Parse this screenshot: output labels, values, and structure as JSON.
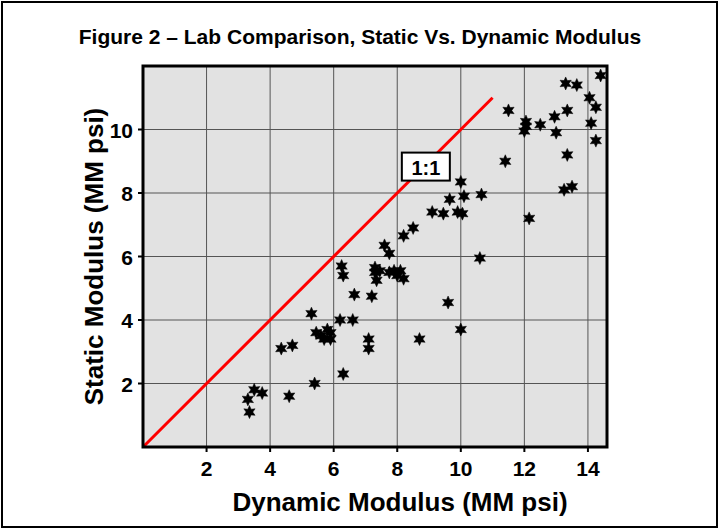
{
  "chart_data": {
    "type": "scatter",
    "title": "Figure 2 – Lab Comparison, Static Vs. Dynamic Modulus",
    "x_label": "Dynamic Modulus (MM psi)",
    "y_label": "Static Modulus (MM psi)",
    "xlim": [
      0,
      14.6
    ],
    "ylim": [
      0,
      12
    ],
    "xticks": [
      2,
      4,
      6,
      8,
      10,
      12,
      14
    ],
    "yticks": [
      2,
      4,
      6,
      8,
      10
    ],
    "grid": true,
    "series": [
      {
        "type": "scatter",
        "color": "#000000",
        "marker": "star",
        "x": [
          3.3,
          3.35,
          3.5,
          3.75,
          4.35,
          4.7,
          4.6,
          5.3,
          5.4,
          5.45,
          5.6,
          5.7,
          5.8,
          5.9,
          5.9,
          6.2,
          6.25,
          6.3,
          6.3,
          6.6,
          6.65,
          7.1,
          7.1,
          7.2,
          7.3,
          7.3,
          7.35,
          7.45,
          7.6,
          7.75,
          7.75,
          7.9,
          8.0,
          8.1,
          8.2,
          8.2,
          8.5,
          8.7,
          9.1,
          9.45,
          9.6,
          9.65,
          9.9,
          10.0,
          10.05,
          10.1,
          10.0,
          10.65,
          10.6,
          11.4,
          11.5,
          12.0,
          12.05,
          12.05,
          12.15,
          12.5,
          12.95,
          13.0,
          13.25,
          13.3,
          13.35,
          13.35,
          13.5,
          13.65,
          14.05,
          14.1,
          14.25,
          14.25,
          14.4
        ],
        "values": [
          1.5,
          1.1,
          1.8,
          1.7,
          3.1,
          3.2,
          1.6,
          4.2,
          2.0,
          3.6,
          3.5,
          3.4,
          3.7,
          3.4,
          3.6,
          4.0,
          5.7,
          5.4,
          2.3,
          4.0,
          4.8,
          3.4,
          3.1,
          4.75,
          5.5,
          5.65,
          5.25,
          5.55,
          6.35,
          6.1,
          5.5,
          5.55,
          5.4,
          5.55,
          5.3,
          6.65,
          6.9,
          3.4,
          7.4,
          7.35,
          4.55,
          7.8,
          7.4,
          8.35,
          7.35,
          7.9,
          3.7,
          7.95,
          5.95,
          9.0,
          10.6,
          9.95,
          10.25,
          10.1,
          7.2,
          10.15,
          10.4,
          9.9,
          8.1,
          11.45,
          10.6,
          9.2,
          8.2,
          11.4,
          11.0,
          10.2,
          10.7,
          9.65,
          11.7
        ]
      },
      {
        "type": "line",
        "color": "#ff0000",
        "line_style": "solid",
        "x": [
          0,
          11
        ],
        "values": [
          0,
          11
        ]
      }
    ],
    "annotations": [
      {
        "text": "1:1",
        "x": 8.9,
        "y": 8.8
      }
    ]
  }
}
